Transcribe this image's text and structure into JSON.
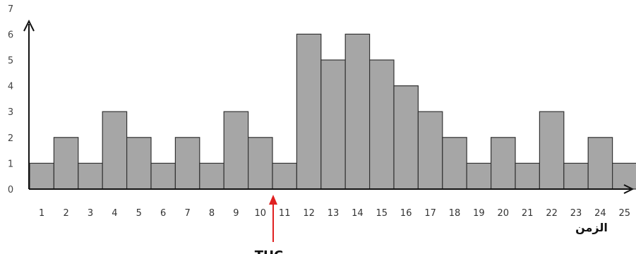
{
  "chart_data": {
    "type": "bar",
    "title": "",
    "xlabel": "الزمن",
    "ylabel": "",
    "categories": [
      "1",
      "2",
      "3",
      "4",
      "5",
      "6",
      "7",
      "8",
      "9",
      "10",
      "11",
      "12",
      "13",
      "14",
      "15",
      "16",
      "17",
      "18",
      "19",
      "20",
      "21",
      "22",
      "23",
      "24",
      "25"
    ],
    "values": [
      1,
      2,
      1,
      3,
      2,
      1,
      2,
      1,
      3,
      2,
      1,
      6,
      5,
      6,
      5,
      4,
      3,
      2,
      1,
      2,
      1,
      3,
      1,
      2,
      1
    ],
    "yticks": [
      "0",
      "1",
      "2",
      "3",
      "4",
      "5",
      "6",
      "7"
    ],
    "ylim": [
      0,
      7
    ],
    "grid": false,
    "bar_color": "#a6a6a6",
    "bar_edge_color": "#333333",
    "annotation": {
      "text": "THC",
      "position_category": "10",
      "color": "#e02020"
    }
  }
}
